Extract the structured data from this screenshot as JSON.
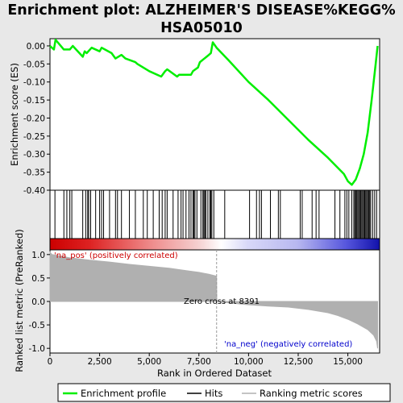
{
  "title_line1": "Enrichment plot: ALZHEIMER'S DISEASE%KEGG%",
  "title_line2": "HSA05010",
  "legend": {
    "enrichment_profile": "Enrichment profile",
    "hits": "Hits",
    "ranking_metric": "Ranking metric scores"
  },
  "annotations": {
    "pos": "'na_pos' (positively correlated)",
    "neg": "'na_neg' (negatively correlated)",
    "zero_cross": "Zero cross at 8391"
  },
  "colors": {
    "profile": "#00ee00",
    "hits": "#000000",
    "metric": "#b0b0b0",
    "pos_label": "#cc0000",
    "neg_label": "#0000cc",
    "zero_line": "#999999"
  },
  "chart_data": [
    {
      "type": "line",
      "name": "enrichment-score",
      "ylabel": "Enrichment score (ES)",
      "xlim": [
        0,
        16600
      ],
      "ylim": [
        -0.4,
        0.02
      ],
      "yticks": [
        0.0,
        -0.05,
        -0.1,
        -0.15,
        -0.2,
        -0.25,
        -0.3,
        -0.35,
        -0.4
      ],
      "ytick_labels": [
        "0.00",
        "-0.05",
        "-0.10",
        "-0.15",
        "-0.20",
        "-0.25",
        "-0.30",
        "-0.35",
        "-0.40"
      ],
      "x": [
        0,
        200,
        280,
        700,
        1000,
        1150,
        1650,
        1750,
        1850,
        2100,
        2500,
        2600,
        3100,
        3300,
        3600,
        3800,
        4300,
        4400,
        5000,
        5600,
        5800,
        5900,
        6400,
        6500,
        7100,
        7200,
        7450,
        7550,
        8000,
        8100,
        8200,
        8391,
        9000,
        10000,
        11000,
        12000,
        13000,
        14000,
        14800,
        15000,
        15200,
        15400,
        15600,
        15800,
        16000,
        16200,
        16400,
        16500
      ],
      "y": [
        0.0,
        -0.01,
        0.017,
        -0.01,
        -0.01,
        0.0,
        -0.03,
        -0.015,
        -0.02,
        -0.005,
        -0.015,
        -0.005,
        -0.02,
        -0.035,
        -0.025,
        -0.035,
        -0.045,
        -0.05,
        -0.07,
        -0.085,
        -0.07,
        -0.065,
        -0.085,
        -0.08,
        -0.08,
        -0.07,
        -0.06,
        -0.045,
        -0.025,
        -0.02,
        0.01,
        -0.005,
        -0.04,
        -0.1,
        -0.15,
        -0.205,
        -0.26,
        -0.31,
        -0.355,
        -0.375,
        -0.385,
        -0.37,
        -0.34,
        -0.3,
        -0.24,
        -0.15,
        -0.05,
        0.0
      ]
    },
    {
      "type": "scatter",
      "name": "hits",
      "hit_positions": [
        250,
        700,
        850,
        1000,
        1100,
        1650,
        1800,
        1900,
        1950,
        2050,
        2300,
        2500,
        2600,
        2700,
        3000,
        3300,
        3400,
        3600,
        4000,
        4300,
        4700,
        4900,
        5200,
        5500,
        5650,
        5800,
        5900,
        6200,
        6450,
        6600,
        6700,
        6850,
        7000,
        7100,
        7200,
        7250,
        7300,
        7400,
        7600,
        7700,
        7750,
        7800,
        7850,
        7950,
        8050,
        8100,
        8150,
        8250,
        8800,
        10050,
        10400,
        10550,
        10650,
        11100,
        11500,
        11600,
        12600,
        12700,
        13200,
        13400,
        13550,
        14350,
        14600,
        14850,
        14950,
        15050,
        15200,
        15300,
        15350,
        15400,
        15450,
        15500,
        15550,
        15600,
        15650,
        15700,
        15750,
        15800,
        15850,
        15900,
        15950,
        16000,
        16050,
        16100,
        16150,
        16250,
        16350,
        16450
      ]
    },
    {
      "type": "area",
      "name": "ranked-list-metric",
      "ylabel": "Ranked list metric (PreRanked)",
      "xlabel": "Rank in Ordered Dataset",
      "xlim": [
        0,
        16600
      ],
      "ylim": [
        -1.1,
        1.1
      ],
      "yticks": [
        1.0,
        0.5,
        0.0,
        -0.5,
        -1.0
      ],
      "ytick_labels": [
        "1.0",
        "0.5",
        "0.0",
        "-0.5",
        "-1.0"
      ],
      "xticks": [
        0,
        2500,
        5000,
        7500,
        10000,
        12500,
        15000
      ],
      "xtick_labels": [
        "0",
        "2,500",
        "5,000",
        "7,500",
        "10,000",
        "12,500",
        "15,000"
      ],
      "x": [
        0,
        100,
        500,
        1000,
        2000,
        3000,
        4000,
        5000,
        6000,
        7000,
        7500,
        8000,
        8391,
        8400,
        9000,
        10000,
        11000,
        12000,
        13000,
        14000,
        14500,
        15000,
        15500,
        16000,
        16300,
        16450,
        16500
      ],
      "y": [
        1.05,
        1.0,
        0.97,
        0.93,
        0.88,
        0.84,
        0.79,
        0.75,
        0.71,
        0.65,
        0.62,
        0.58,
        0.54,
        0.0,
        -0.03,
        -0.07,
        -0.1,
        -0.12,
        -0.17,
        -0.24,
        -0.3,
        -0.38,
        -0.48,
        -0.6,
        -0.72,
        -0.85,
        -1.0
      ]
    }
  ]
}
